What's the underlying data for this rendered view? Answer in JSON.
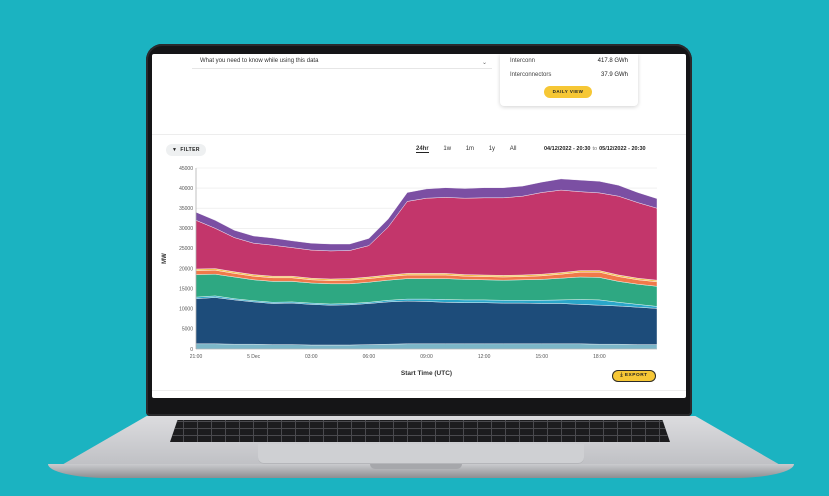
{
  "page": {
    "top_text": "What you need to know while using this data",
    "top_chevron": "⌄"
  },
  "summary": {
    "rows": [
      {
        "label": "Interconn",
        "value": "417.8 GWh"
      },
      {
        "label": "Interconnectors",
        "value": "37.9 GWh"
      }
    ],
    "daily_view_label": "DAILY VIEW"
  },
  "toolbar": {
    "filter_label": "FILTER",
    "ranges": [
      "24hr",
      "1w",
      "1m",
      "1y",
      "All"
    ],
    "active_range": "24hr",
    "date_from": "04/12/2022 - 20:30",
    "date_sep": "to",
    "date_to": "05/12/2022 - 20:30",
    "export_label": "EXPORT"
  },
  "chart_data": {
    "type": "area",
    "stacked": true,
    "xlabel": "Start Time (UTC)",
    "ylabel": "MW",
    "ylim": [
      0,
      45000
    ],
    "yticks": [
      0,
      5000,
      10000,
      15000,
      20000,
      25000,
      30000,
      35000,
      40000,
      45000
    ],
    "x_ticks": [
      {
        "label": "21:00",
        "x": 0
      },
      {
        "label": "5 Dec",
        "x": 3
      },
      {
        "label": "03:00",
        "x": 6
      },
      {
        "label": "06:00",
        "x": 9
      },
      {
        "label": "09:00",
        "x": 12
      },
      {
        "label": "12:00",
        "x": 15
      },
      {
        "label": "15:00",
        "x": 18
      },
      {
        "label": "18:00",
        "x": 21
      }
    ],
    "x": [
      0,
      1,
      2,
      3,
      4,
      5,
      6,
      7,
      8,
      9,
      10,
      11,
      12,
      13,
      14,
      15,
      16,
      17,
      18,
      19,
      20,
      21,
      22,
      23,
      24
    ],
    "colors": [
      "#7bb6c8",
      "#1d4c7a",
      "#2aa6c9",
      "#2ea882",
      "#f0794a",
      "#f2c14e",
      "#c3366b",
      "#7b4fa3"
    ],
    "series": [
      {
        "values": [
          1300,
          1300,
          1200,
          1200,
          1100,
          1100,
          1000,
          1000,
          1000,
          1100,
          1200,
          1300,
          1300,
          1300,
          1300,
          1300,
          1300,
          1300,
          1300,
          1300,
          1300,
          1200,
          1200,
          1100,
          1100
        ]
      },
      {
        "values": [
          11200,
          11500,
          11000,
          10500,
          10200,
          10300,
          10100,
          9900,
          10000,
          10200,
          10500,
          10600,
          10500,
          10300,
          10200,
          10200,
          10100,
          10100,
          10000,
          10000,
          9800,
          9700,
          9500,
          9300,
          9000
        ]
      },
      {
        "values": [
          400,
          400,
          300,
          300,
          300,
          300,
          300,
          300,
          300,
          300,
          400,
          500,
          600,
          700,
          700,
          700,
          700,
          700,
          800,
          900,
          1200,
          1300,
          900,
          700,
          500
        ]
      },
      {
        "values": [
          5600,
          5400,
          5400,
          5200,
          5200,
          5100,
          5000,
          5000,
          4900,
          5000,
          5000,
          5100,
          5100,
          5200,
          5100,
          5000,
          5000,
          5100,
          5200,
          5400,
          5600,
          5600,
          5200,
          5000,
          5000
        ]
      },
      {
        "values": [
          1000,
          1000,
          900,
          900,
          900,
          900,
          800,
          800,
          900,
          900,
          900,
          900,
          900,
          900,
          800,
          800,
          800,
          800,
          900,
          1000,
          1200,
          1300,
          1200,
          1100,
          1100
        ]
      },
      {
        "values": [
          400,
          400,
          400,
          400,
          400,
          400,
          400,
          400,
          400,
          400,
          400,
          400,
          400,
          400,
          400,
          400,
          400,
          400,
          400,
          400,
          400,
          400,
          400,
          400,
          400
        ]
      },
      {
        "values": [
          12100,
          10000,
          8500,
          7800,
          7700,
          7100,
          7000,
          7000,
          7000,
          7800,
          11900,
          17900,
          18700,
          18900,
          19000,
          19200,
          19300,
          19600,
          20300,
          20500,
          19600,
          19300,
          19600,
          18800,
          17900
        ]
      },
      {
        "values": [
          2000,
          2000,
          1800,
          1800,
          1800,
          1700,
          1700,
          1700,
          1600,
          1800,
          2000,
          2200,
          2300,
          2400,
          2400,
          2500,
          2500,
          2500,
          2600,
          2800,
          2900,
          2900,
          2700,
          2500,
          2400
        ]
      }
    ]
  }
}
